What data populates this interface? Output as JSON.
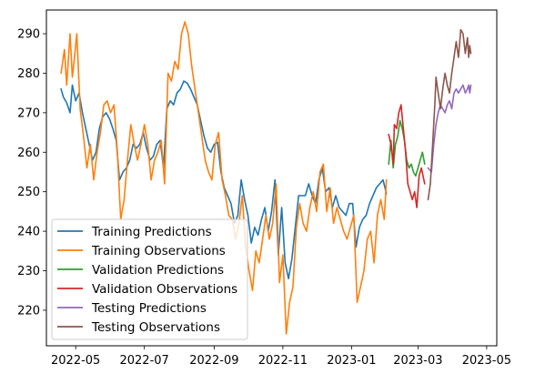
{
  "chart_data": {
    "type": "line",
    "title": "",
    "xlabel": "",
    "ylabel": "",
    "x_is_date": true,
    "xlim": [
      "2022-04-05",
      "2023-05-10"
    ],
    "ylim": [
      211,
      296
    ],
    "x_ticks": [
      "2022-05-01",
      "2022-07-01",
      "2022-09-01",
      "2022-11-01",
      "2023-01-01",
      "2023-03-01",
      "2023-05-01"
    ],
    "x_tick_labels": [
      "2022-05",
      "2022-07",
      "2022-09",
      "2022-11",
      "2023-01",
      "2023-03",
      "2023-05"
    ],
    "y_ticks": [
      220,
      230,
      240,
      250,
      260,
      270,
      280,
      290
    ],
    "y_tick_labels": [
      "220",
      "230",
      "240",
      "250",
      "260",
      "270",
      "280",
      "290"
    ],
    "grid": false,
    "legend_position": "lower-left",
    "series": [
      {
        "name": "Training Predictions",
        "color": "#1f77b4",
        "points": [
          [
            "2022-04-18",
            276
          ],
          [
            "2022-04-20",
            274
          ],
          [
            "2022-04-23",
            272.5
          ],
          [
            "2022-04-26",
            270
          ],
          [
            "2022-04-28",
            277
          ],
          [
            "2022-05-01",
            273
          ],
          [
            "2022-05-04",
            275
          ],
          [
            "2022-05-07",
            270
          ],
          [
            "2022-05-10",
            266
          ],
          [
            "2022-05-13",
            262
          ],
          [
            "2022-05-16",
            258
          ],
          [
            "2022-05-19",
            260
          ],
          [
            "2022-05-22",
            266
          ],
          [
            "2022-05-25",
            269
          ],
          [
            "2022-05-28",
            270
          ],
          [
            "2022-05-31",
            268.5
          ],
          [
            "2022-06-03",
            266
          ],
          [
            "2022-06-06",
            263
          ],
          [
            "2022-06-09",
            253
          ],
          [
            "2022-06-12",
            255
          ],
          [
            "2022-06-15",
            256
          ],
          [
            "2022-06-18",
            258
          ],
          [
            "2022-06-21",
            262
          ],
          [
            "2022-06-24",
            261
          ],
          [
            "2022-06-27",
            262
          ],
          [
            "2022-06-30",
            265
          ],
          [
            "2022-07-03",
            261
          ],
          [
            "2022-07-06",
            258
          ],
          [
            "2022-07-09",
            259
          ],
          [
            "2022-07-12",
            262
          ],
          [
            "2022-07-15",
            263
          ],
          [
            "2022-07-18",
            256
          ],
          [
            "2022-07-21",
            271
          ],
          [
            "2022-07-24",
            273
          ],
          [
            "2022-07-27",
            272
          ],
          [
            "2022-07-30",
            275
          ],
          [
            "2022-08-02",
            276
          ],
          [
            "2022-08-05",
            278
          ],
          [
            "2022-08-08",
            277.5
          ],
          [
            "2022-08-11",
            276
          ],
          [
            "2022-08-14",
            274
          ],
          [
            "2022-08-17",
            272
          ],
          [
            "2022-08-20",
            268
          ],
          [
            "2022-08-23",
            264
          ],
          [
            "2022-08-26",
            261
          ],
          [
            "2022-08-29",
            260
          ],
          [
            "2022-09-01",
            262
          ],
          [
            "2022-09-04",
            262.5
          ],
          [
            "2022-09-07",
            255
          ],
          [
            "2022-09-10",
            251
          ],
          [
            "2022-09-13",
            249
          ],
          [
            "2022-09-16",
            247
          ],
          [
            "2022-09-19",
            242
          ],
          [
            "2022-09-22",
            244
          ],
          [
            "2022-09-25",
            253
          ],
          [
            "2022-09-28",
            248
          ],
          [
            "2022-10-01",
            244
          ],
          [
            "2022-10-04",
            237
          ],
          [
            "2022-10-07",
            241
          ],
          [
            "2022-10-10",
            239
          ],
          [
            "2022-10-13",
            243
          ],
          [
            "2022-10-16",
            246
          ],
          [
            "2022-10-19",
            240
          ],
          [
            "2022-10-22",
            245
          ],
          [
            "2022-10-25",
            253
          ],
          [
            "2022-10-28",
            234
          ],
          [
            "2022-10-31",
            246
          ],
          [
            "2022-11-03",
            232
          ],
          [
            "2022-11-06",
            228
          ],
          [
            "2022-11-09",
            233
          ],
          [
            "2022-11-12",
            241
          ],
          [
            "2022-11-15",
            249
          ],
          [
            "2022-11-18",
            249
          ],
          [
            "2022-11-21",
            249
          ],
          [
            "2022-11-24",
            252
          ],
          [
            "2022-11-27",
            249
          ],
          [
            "2022-11-30",
            247
          ],
          [
            "2022-12-03",
            253
          ],
          [
            "2022-12-06",
            256
          ],
          [
            "2022-12-09",
            250
          ],
          [
            "2022-12-12",
            251
          ],
          [
            "2022-12-15",
            246
          ],
          [
            "2022-12-18",
            249
          ],
          [
            "2022-12-21",
            246
          ],
          [
            "2022-12-24",
            245
          ],
          [
            "2022-12-27",
            244
          ],
          [
            "2022-12-30",
            247
          ],
          [
            "2023-01-02",
            247
          ],
          [
            "2023-01-05",
            236
          ],
          [
            "2023-01-08",
            241
          ],
          [
            "2023-01-11",
            243
          ],
          [
            "2023-01-14",
            244
          ],
          [
            "2023-01-17",
            247
          ],
          [
            "2023-01-20",
            249
          ],
          [
            "2023-01-23",
            251
          ],
          [
            "2023-01-26",
            252
          ],
          [
            "2023-01-29",
            253
          ],
          [
            "2023-02-01",
            249.5
          ]
        ]
      },
      {
        "name": "Training Observations",
        "color": "#ff7f0e",
        "points": [
          [
            "2022-04-18",
            280
          ],
          [
            "2022-04-21",
            286
          ],
          [
            "2022-04-23",
            277
          ],
          [
            "2022-04-26",
            290
          ],
          [
            "2022-04-28",
            279
          ],
          [
            "2022-04-30",
            284
          ],
          [
            "2022-05-02",
            290
          ],
          [
            "2022-05-05",
            271
          ],
          [
            "2022-05-08",
            264
          ],
          [
            "2022-05-11",
            256
          ],
          [
            "2022-05-14",
            262
          ],
          [
            "2022-05-17",
            253
          ],
          [
            "2022-05-20",
            260
          ],
          [
            "2022-05-23",
            265
          ],
          [
            "2022-05-26",
            272
          ],
          [
            "2022-05-29",
            273
          ],
          [
            "2022-06-01",
            270
          ],
          [
            "2022-06-04",
            272
          ],
          [
            "2022-06-07",
            260
          ],
          [
            "2022-06-10",
            243
          ],
          [
            "2022-06-13",
            248
          ],
          [
            "2022-06-16",
            258
          ],
          [
            "2022-06-19",
            267
          ],
          [
            "2022-06-22",
            262
          ],
          [
            "2022-06-25",
            258
          ],
          [
            "2022-06-28",
            262
          ],
          [
            "2022-07-01",
            267
          ],
          [
            "2022-07-04",
            262
          ],
          [
            "2022-07-07",
            253
          ],
          [
            "2022-07-10",
            258
          ],
          [
            "2022-07-13",
            260
          ],
          [
            "2022-07-16",
            263
          ],
          [
            "2022-07-19",
            252
          ],
          [
            "2022-07-22",
            280
          ],
          [
            "2022-07-25",
            278
          ],
          [
            "2022-07-28",
            283
          ],
          [
            "2022-07-31",
            281
          ],
          [
            "2022-08-03",
            290
          ],
          [
            "2022-08-06",
            293
          ],
          [
            "2022-08-09",
            290
          ],
          [
            "2022-08-12",
            282
          ],
          [
            "2022-08-15",
            276
          ],
          [
            "2022-08-18",
            270
          ],
          [
            "2022-08-21",
            264
          ],
          [
            "2022-08-24",
            258
          ],
          [
            "2022-08-27",
            255
          ],
          [
            "2022-08-30",
            253
          ],
          [
            "2022-09-02",
            262
          ],
          [
            "2022-09-05",
            265
          ],
          [
            "2022-09-08",
            253
          ],
          [
            "2022-09-11",
            249
          ],
          [
            "2022-09-14",
            244
          ],
          [
            "2022-09-17",
            243
          ],
          [
            "2022-09-20",
            238
          ],
          [
            "2022-09-23",
            242
          ],
          [
            "2022-09-26",
            249
          ],
          [
            "2022-09-29",
            236
          ],
          [
            "2022-10-02",
            230
          ],
          [
            "2022-10-05",
            225
          ],
          [
            "2022-10-08",
            235
          ],
          [
            "2022-10-11",
            232
          ],
          [
            "2022-10-14",
            238
          ],
          [
            "2022-10-17",
            244
          ],
          [
            "2022-10-20",
            238
          ],
          [
            "2022-10-23",
            242
          ],
          [
            "2022-10-26",
            252
          ],
          [
            "2022-10-29",
            227
          ],
          [
            "2022-11-01",
            234
          ],
          [
            "2022-11-04",
            214
          ],
          [
            "2022-11-07",
            222
          ],
          [
            "2022-11-10",
            226
          ],
          [
            "2022-11-13",
            241
          ],
          [
            "2022-11-16",
            247
          ],
          [
            "2022-11-19",
            242
          ],
          [
            "2022-11-22",
            240
          ],
          [
            "2022-11-25",
            246
          ],
          [
            "2022-11-28",
            250
          ],
          [
            "2022-12-01",
            245
          ],
          [
            "2022-12-04",
            255
          ],
          [
            "2022-12-07",
            257
          ],
          [
            "2022-12-10",
            245
          ],
          [
            "2022-12-13",
            251
          ],
          [
            "2022-12-16",
            242
          ],
          [
            "2022-12-19",
            246
          ],
          [
            "2022-12-22",
            243
          ],
          [
            "2022-12-25",
            240
          ],
          [
            "2022-12-28",
            238
          ],
          [
            "2022-12-31",
            241
          ],
          [
            "2023-01-03",
            244
          ],
          [
            "2023-01-06",
            222
          ],
          [
            "2023-01-09",
            226
          ],
          [
            "2023-01-12",
            230
          ],
          [
            "2023-01-15",
            238
          ],
          [
            "2023-01-18",
            240
          ],
          [
            "2023-01-21",
            232
          ],
          [
            "2023-01-24",
            244
          ],
          [
            "2023-01-27",
            248
          ],
          [
            "2023-01-30",
            243
          ],
          [
            "2023-02-01",
            253
          ]
        ]
      },
      {
        "name": "Validation Predictions",
        "color": "#2ca02c",
        "points": [
          [
            "2023-02-03",
            257
          ],
          [
            "2023-02-05",
            263
          ],
          [
            "2023-02-07",
            256
          ],
          [
            "2023-02-09",
            262
          ],
          [
            "2023-02-11",
            264
          ],
          [
            "2023-02-13",
            268
          ],
          [
            "2023-02-15",
            266
          ],
          [
            "2023-02-17",
            263
          ],
          [
            "2023-02-19",
            258
          ],
          [
            "2023-02-21",
            256
          ],
          [
            "2023-02-23",
            257
          ],
          [
            "2023-02-25",
            255
          ],
          [
            "2023-02-27",
            254
          ],
          [
            "2023-03-01",
            256
          ],
          [
            "2023-03-03",
            258
          ],
          [
            "2023-03-05",
            260
          ],
          [
            "2023-03-07",
            257
          ]
        ]
      },
      {
        "name": "Validation Observations",
        "color": "#d62728",
        "points": [
          [
            "2023-02-03",
            264.5
          ],
          [
            "2023-02-05",
            262
          ],
          [
            "2023-02-07",
            257
          ],
          [
            "2023-02-08",
            267
          ],
          [
            "2023-02-10",
            266
          ],
          [
            "2023-02-12",
            270
          ],
          [
            "2023-02-14",
            272
          ],
          [
            "2023-02-16",
            266
          ],
          [
            "2023-02-18",
            260
          ],
          [
            "2023-02-20",
            252
          ],
          [
            "2023-02-22",
            250
          ],
          [
            "2023-02-24",
            248
          ],
          [
            "2023-02-26",
            250
          ],
          [
            "2023-02-28",
            246
          ],
          [
            "2023-03-02",
            254
          ],
          [
            "2023-03-04",
            256
          ],
          [
            "2023-03-07",
            252
          ]
        ]
      },
      {
        "name": "Testing Predictions",
        "color": "#9467bd",
        "points": [
          [
            "2023-03-10",
            256
          ],
          [
            "2023-03-13",
            255
          ],
          [
            "2023-03-15",
            262
          ],
          [
            "2023-03-17",
            267
          ],
          [
            "2023-03-19",
            270
          ],
          [
            "2023-03-21",
            272
          ],
          [
            "2023-03-23",
            271
          ],
          [
            "2023-03-25",
            270
          ],
          [
            "2023-03-27",
            272
          ],
          [
            "2023-03-29",
            273
          ],
          [
            "2023-03-31",
            271
          ],
          [
            "2023-04-02",
            275
          ],
          [
            "2023-04-04",
            276
          ],
          [
            "2023-04-06",
            275
          ],
          [
            "2023-04-08",
            276
          ],
          [
            "2023-04-10",
            277
          ],
          [
            "2023-04-12",
            275
          ],
          [
            "2023-04-14",
            276
          ],
          [
            "2023-04-15",
            277
          ],
          [
            "2023-04-16",
            275
          ],
          [
            "2023-04-17",
            277
          ]
        ]
      },
      {
        "name": "Testing Observations",
        "color": "#8c564b",
        "points": [
          [
            "2023-03-10",
            248
          ],
          [
            "2023-03-12",
            252
          ],
          [
            "2023-03-14",
            262
          ],
          [
            "2023-03-16",
            272
          ],
          [
            "2023-03-17",
            279
          ],
          [
            "2023-03-19",
            275
          ],
          [
            "2023-03-21",
            271
          ],
          [
            "2023-03-23",
            276
          ],
          [
            "2023-03-25",
            280
          ],
          [
            "2023-03-27",
            277
          ],
          [
            "2023-03-29",
            275
          ],
          [
            "2023-03-31",
            280
          ],
          [
            "2023-04-02",
            284
          ],
          [
            "2023-04-04",
            288
          ],
          [
            "2023-04-06",
            284
          ],
          [
            "2023-04-08",
            291
          ],
          [
            "2023-04-10",
            290
          ],
          [
            "2023-04-12",
            285
          ],
          [
            "2023-04-14",
            289
          ],
          [
            "2023-04-15",
            284
          ],
          [
            "2023-04-16",
            287
          ],
          [
            "2023-04-17",
            285
          ]
        ]
      }
    ]
  }
}
